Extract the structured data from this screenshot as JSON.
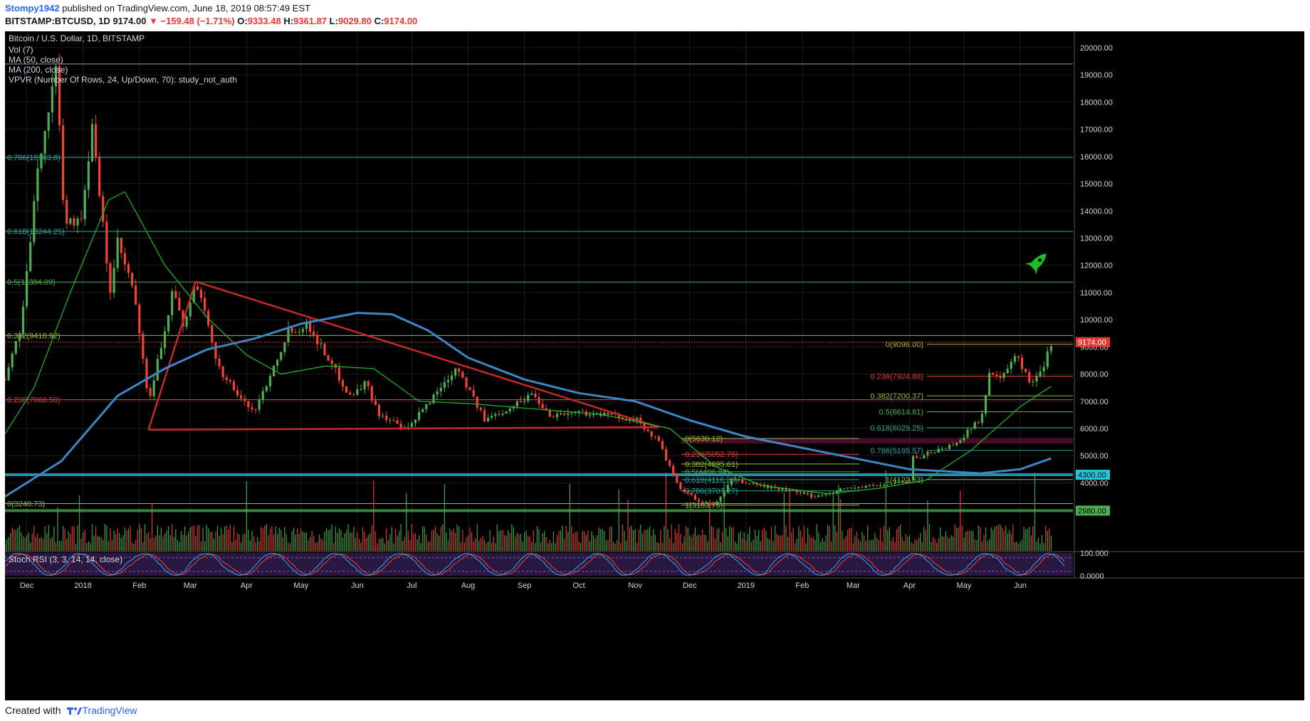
{
  "header": {
    "author": "Stompy1942",
    "published_text": "published on TradingView.com, June 18, 2019 08:57:49 EST",
    "symbol": "BITSTAMP:BTCUSD, 1D",
    "last": "9174.00",
    "change": "▼ −159.48 (−1.71%)",
    "ohlc": [
      {
        "k": "O:",
        "v": "9333.48"
      },
      {
        "k": "H:",
        "v": "9361.87"
      },
      {
        "k": "L:",
        "v": "9029.80"
      },
      {
        "k": "C:",
        "v": "9174.00"
      }
    ]
  },
  "footer": {
    "created_with": "Created with",
    "brand": "TradingView"
  },
  "colors": {
    "up": "#4caf50",
    "down": "#f44336",
    "ma50": "#1fbb27",
    "ma200": "#3d86c6",
    "trend": "#c62828",
    "fib_1": "#26a69a",
    "fib_2": "#4caf50",
    "fib_3": "#9bbb37",
    "fib_4": "#e53935",
    "stoch_k": "#2196f3",
    "stoch_d": "#f44336",
    "rocket": "#1fbb27"
  },
  "icons": {
    "rocket": "rocket-icon",
    "logo": "tradingview-logo-icon"
  },
  "chart_data": {
    "type": "candlestick",
    "title": "Bitcoin / U.S. Dollar, 1D, BITSTAMP",
    "legend": [
      "Vol (7)",
      "MA (50, close)",
      "MA (200, close)",
      "VPVR (Number Of Rows, 24, Up/Down, 70): study_not_auth"
    ],
    "stoch_label": "Stoch RSI (3, 3, 14, 14, close)",
    "last_price": 9174,
    "last_price_label": "9174.00",
    "ylim": [
      1500,
      20600
    ],
    "y_ticks": [
      {
        "v": 20000,
        "label": "20000.00"
      },
      {
        "v": 19000,
        "label": "19000.00"
      },
      {
        "v": 18000,
        "label": "18000.00"
      },
      {
        "v": 17000,
        "label": "17000.00"
      },
      {
        "v": 16000,
        "label": "16000.00"
      },
      {
        "v": 15000,
        "label": "15000.00"
      },
      {
        "v": 14000,
        "label": "14000.00"
      },
      {
        "v": 13000,
        "label": "13000.00"
      },
      {
        "v": 12000,
        "label": "12000.00"
      },
      {
        "v": 11000,
        "label": "11000.00"
      },
      {
        "v": 10000,
        "label": "10000.00"
      },
      {
        "v": 9000,
        "label": "9000.00"
      },
      {
        "v": 8000,
        "label": "8000.00"
      },
      {
        "v": 7000,
        "label": "7000.00"
      },
      {
        "v": 6000,
        "label": "6000.00"
      },
      {
        "v": 5000,
        "label": "5000.00"
      },
      {
        "v": 4000,
        "label": "4000.00"
      }
    ],
    "stoch_ticks": [
      {
        "v": 100,
        "label": "100.000"
      },
      {
        "v": 0,
        "label": "0.0000"
      }
    ],
    "x_range": [
      "2017-11-19",
      "2019-06-30"
    ],
    "x_ticks": [
      {
        "d": "2017-12-01",
        "label": "Dec"
      },
      {
        "d": "2018-01-01",
        "label": "2018"
      },
      {
        "d": "2018-02-01",
        "label": "Feb"
      },
      {
        "d": "2018-03-01",
        "label": "Mar"
      },
      {
        "d": "2018-04-01",
        "label": "Apr"
      },
      {
        "d": "2018-05-01",
        "label": "May"
      },
      {
        "d": "2018-06-01",
        "label": "Jun"
      },
      {
        "d": "2018-07-01",
        "label": "Jul"
      },
      {
        "d": "2018-08-01",
        "label": "Aug"
      },
      {
        "d": "2018-09-01",
        "label": "Sep"
      },
      {
        "d": "2018-10-01",
        "label": "Oct"
      },
      {
        "d": "2018-11-01",
        "label": "Nov"
      },
      {
        "d": "2018-12-01",
        "label": "Dec"
      },
      {
        "d": "2019-01-01",
        "label": "2019"
      },
      {
        "d": "2019-02-01",
        "label": "Feb"
      },
      {
        "d": "2019-03-01",
        "label": "Mar"
      },
      {
        "d": "2019-04-01",
        "label": "Apr"
      },
      {
        "d": "2019-05-01",
        "label": "May"
      },
      {
        "d": "2019-06-01",
        "label": "Jun"
      }
    ],
    "price_path": [
      [
        "2017-11-19",
        7800
      ],
      [
        "2017-11-28",
        9800
      ],
      [
        "2017-12-08",
        16000
      ],
      [
        "2017-12-17",
        19200
      ],
      [
        "2017-12-22",
        13500
      ],
      [
        "2017-12-31",
        13800
      ],
      [
        "2018-01-06",
        17000
      ],
      [
        "2018-01-16",
        11000
      ],
      [
        "2018-01-20",
        12800
      ],
      [
        "2018-01-29",
        11000
      ],
      [
        "2018-02-06",
        6900
      ],
      [
        "2018-02-20",
        11200
      ],
      [
        "2018-02-25",
        9600
      ],
      [
        "2018-03-04",
        11400
      ],
      [
        "2018-03-17",
        8200
      ],
      [
        "2018-03-31",
        6900
      ],
      [
        "2018-04-06",
        6700
      ],
      [
        "2018-04-24",
        9600
      ],
      [
        "2018-05-05",
        9800
      ],
      [
        "2018-05-28",
        7200
      ],
      [
        "2018-06-06",
        7700
      ],
      [
        "2018-06-12",
        6600
      ],
      [
        "2018-06-28",
        5900
      ],
      [
        "2018-07-06",
        6600
      ],
      [
        "2018-07-26",
        8300
      ],
      [
        "2018-08-10",
        6300
      ],
      [
        "2018-08-30",
        7000
      ],
      [
        "2018-09-05",
        7300
      ],
      [
        "2018-09-15",
        6500
      ],
      [
        "2018-10-01",
        6600
      ],
      [
        "2018-10-15",
        6500
      ],
      [
        "2018-11-01",
        6350
      ],
      [
        "2018-11-14",
        5500
      ],
      [
        "2018-11-25",
        3800
      ],
      [
        "2018-12-07",
        3300
      ],
      [
        "2018-12-15",
        3200
      ],
      [
        "2018-12-24",
        4100
      ],
      [
        "2019-01-10",
        3900
      ],
      [
        "2019-02-08",
        3500
      ],
      [
        "2019-02-25",
        3800
      ],
      [
        "2019-03-15",
        3900
      ],
      [
        "2019-04-01",
        4100
      ],
      [
        "2019-04-03",
        4900
      ],
      [
        "2019-04-25",
        5400
      ],
      [
        "2019-05-10",
        6300
      ],
      [
        "2019-05-15",
        8000
      ],
      [
        "2019-05-22",
        7800
      ],
      [
        "2019-05-30",
        8700
      ],
      [
        "2019-06-06",
        7700
      ],
      [
        "2019-06-14",
        8300
      ],
      [
        "2019-06-18",
        9174
      ]
    ],
    "candle_every_days": 2,
    "ma50": [
      [
        "2017-11-19",
        5800
      ],
      [
        "2017-12-05",
        7500
      ],
      [
        "2017-12-25",
        11000
      ],
      [
        "2018-01-15",
        14400
      ],
      [
        "2018-01-24",
        14700
      ],
      [
        "2018-02-15",
        12000
      ],
      [
        "2018-03-10",
        10100
      ],
      [
        "2018-04-01",
        8700
      ],
      [
        "2018-04-20",
        8000
      ],
      [
        "2018-05-15",
        8300
      ],
      [
        "2018-06-10",
        8200
      ],
      [
        "2018-07-05",
        7000
      ],
      [
        "2018-08-05",
        6900
      ],
      [
        "2018-09-10",
        6700
      ],
      [
        "2018-10-15",
        6500
      ],
      [
        "2018-11-20",
        6000
      ],
      [
        "2018-12-15",
        4600
      ],
      [
        "2019-01-10",
        3900
      ],
      [
        "2019-02-15",
        3600
      ],
      [
        "2019-03-15",
        3800
      ],
      [
        "2019-04-10",
        4100
      ],
      [
        "2019-05-05",
        5200
      ],
      [
        "2019-06-01",
        6800
      ],
      [
        "2019-06-18",
        7550
      ]
    ],
    "ma200": [
      [
        "2017-11-19",
        3500
      ],
      [
        "2017-12-20",
        4800
      ],
      [
        "2018-01-20",
        7200
      ],
      [
        "2018-02-15",
        8200
      ],
      [
        "2018-03-10",
        8900
      ],
      [
        "2018-04-05",
        9300
      ],
      [
        "2018-05-01",
        9850
      ],
      [
        "2018-06-01",
        10250
      ],
      [
        "2018-06-20",
        10200
      ],
      [
        "2018-07-10",
        9600
      ],
      [
        "2018-08-01",
        8600
      ],
      [
        "2018-09-01",
        7800
      ],
      [
        "2018-10-01",
        7300
      ],
      [
        "2018-11-01",
        7000
      ],
      [
        "2018-12-01",
        6300
      ],
      [
        "2019-01-01",
        5700
      ],
      [
        "2019-02-15",
        5100
      ],
      [
        "2019-04-01",
        4500
      ],
      [
        "2019-05-10",
        4350
      ],
      [
        "2019-06-01",
        4500
      ],
      [
        "2019-06-18",
        4900
      ]
    ],
    "trendlines": [
      {
        "from": [
          "2018-02-06",
          5950
        ],
        "to": [
          "2018-11-14",
          6050
        ]
      },
      {
        "from": [
          "2018-02-06",
          5950
        ],
        "to": [
          "2018-03-04",
          11400
        ]
      },
      {
        "from": [
          "2018-03-04",
          11400
        ],
        "to": [
          "2018-11-14",
          6050
        ]
      }
    ],
    "fib_left": [
      {
        "v": 15963.8,
        "label": "0.786(15963.8)",
        "c": "fib_1"
      },
      {
        "v": 13244.25,
        "label": "0.618(13244.25)",
        "c": "fib_1"
      },
      {
        "v": 11384.09,
        "label": "0.5(11384.09)",
        "c": "fib_2"
      },
      {
        "v": 9418.92,
        "label": "0.382(9418.92)",
        "c": "fib_3"
      },
      {
        "v": 7060.5,
        "label": "0.236(7060.50)",
        "c": "fib_4"
      },
      {
        "v": 3240.73,
        "label": "0(3240.73)",
        "c": "fib_3"
      }
    ],
    "fib_right": [
      {
        "v": 9096,
        "label": "0(9096.00)",
        "c": "fib_3"
      },
      {
        "v": 7924.88,
        "label": "0.236(7924.88)",
        "c": "fib_4"
      },
      {
        "v": 7200.37,
        "label": "0.382(7200.37)",
        "c": "fib_3"
      },
      {
        "v": 6614.81,
        "label": "0.5(6614.81)",
        "c": "fib_2"
      },
      {
        "v": 6029.25,
        "label": "0.618(6029.25)",
        "c": "fib_1"
      },
      {
        "v": 5195.57,
        "label": "0.786(5195.57)",
        "c": "fib_1"
      },
      {
        "v": 4122.63,
        "label": "1(4122.63)",
        "c": "fib_3"
      }
    ],
    "fib_mid": [
      {
        "v": 5630.12,
        "label": "0(5630.12)",
        "c": "fib_3"
      },
      {
        "v": 5052.78,
        "label": "0.236(5052.78)",
        "c": "fib_4"
      },
      {
        "v": 4695.61,
        "label": "0.382(4695.61)",
        "c": "fib_3"
      },
      {
        "v": 4406.94,
        "label": "0.5(4406.94)",
        "c": "fib_2"
      },
      {
        "v": 4118.26,
        "label": "0.618(4118.26)",
        "c": "fib_1"
      },
      {
        "v": 3707.27,
        "label": "0.786(3707.27)",
        "c": "fib_1"
      },
      {
        "v": 3183.75,
        "label": "1(3183.75)",
        "c": "fib_3"
      }
    ],
    "hlines": [
      {
        "v": 4300,
        "label": "4300.00",
        "c": "#26c6da"
      },
      {
        "v": 2980,
        "label": "2980.00",
        "c": "#4caf50"
      }
    ],
    "supply_zone": [
      5450,
      5650
    ],
    "top_line": 19400
  }
}
